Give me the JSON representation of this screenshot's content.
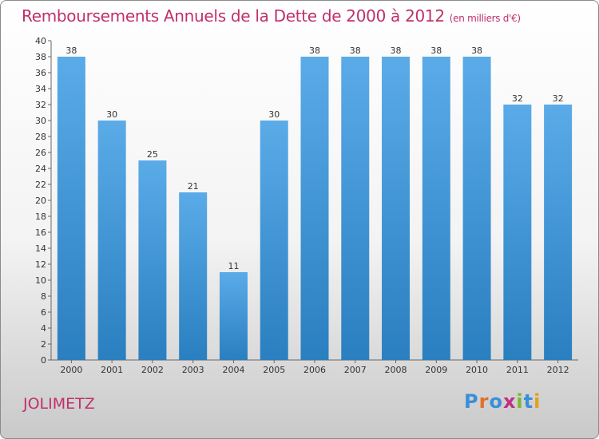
{
  "title": "Remboursements Annuels de la Dette de 2000 à 2012",
  "unit": "(en milliers d'€)",
  "city": "JOLIMETZ",
  "logo": {
    "text": "Proxiti",
    "letters": [
      "P",
      "r",
      "o",
      "x",
      "i",
      "t",
      "i"
    ],
    "colors": [
      "#3a8fd8",
      "#e0702a",
      "#3a8fd8",
      "#c03080",
      "#7ab82c",
      "#3a8fd8",
      "#e0a020"
    ]
  },
  "colors": {
    "bar_top": "#5aabe8",
    "bar_bottom": "#2a7fc0",
    "title": "#c0306a"
  },
  "chart_data": {
    "type": "bar",
    "title": "Remboursements Annuels de la Dette de 2000 à 2012",
    "categories": [
      "2000",
      "2001",
      "2002",
      "2003",
      "2004",
      "2005",
      "2006",
      "2007",
      "2008",
      "2009",
      "2010",
      "2011",
      "2012"
    ],
    "values": [
      38,
      30,
      25,
      21,
      11,
      30,
      38,
      38,
      38,
      38,
      38,
      32,
      32
    ],
    "ylim": [
      0,
      40
    ],
    "yticks": [
      0,
      2,
      4,
      6,
      8,
      10,
      12,
      14,
      16,
      18,
      20,
      22,
      24,
      26,
      28,
      30,
      32,
      34,
      36,
      38,
      40
    ],
    "grid": false
  }
}
